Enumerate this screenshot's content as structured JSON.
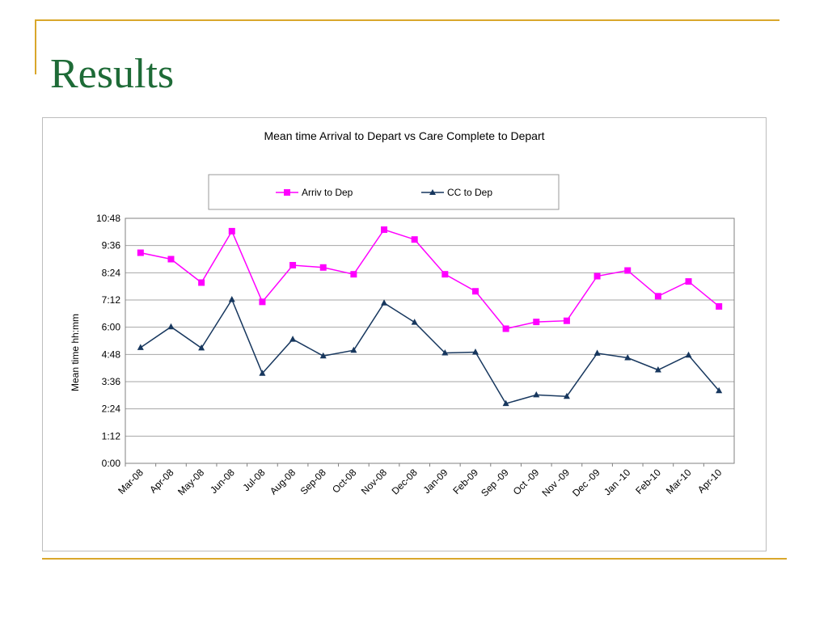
{
  "slide": {
    "title": "Results"
  },
  "colors": {
    "accent": "#d9a72b",
    "title": "#1e6b37"
  },
  "chart_data": {
    "type": "line",
    "title": "Mean time Arrival to Depart vs Care Complete to Depart",
    "xlabel": "",
    "ylabel": "Mean time  hh:mm",
    "categories": [
      "Mar-08",
      "Apr-08",
      "May-08",
      "Jun-08",
      "Jul-08",
      "Aug-08",
      "Sep-08",
      "Oct-08",
      "Nov-08",
      "Dec-08",
      "Jan-09",
      "Feb-09",
      "Sep -09",
      "Oct -09",
      "Nov -09",
      "Dec -09",
      "Jan -10",
      "Feb-10",
      "Mar-10",
      "Apr-10"
    ],
    "y_unit": "minutes",
    "ylim": [
      0,
      648
    ],
    "y_ticks": [
      0,
      72,
      144,
      216,
      288,
      360,
      432,
      504,
      576,
      648
    ],
    "y_tick_labels": [
      "0:00",
      "1:12",
      "2:24",
      "3:36",
      "4:48",
      "6:00",
      "7:12",
      "8:24",
      "9:36",
      "10:48"
    ],
    "grid": true,
    "legend_position": "top",
    "series": [
      {
        "name": "Arriv to Dep",
        "color": "#ff00ff",
        "marker": "square",
        "values": [
          557,
          540,
          478,
          614,
          427,
          524,
          518,
          500,
          618,
          592,
          500,
          455,
          356,
          374,
          377,
          495,
          510,
          442,
          481,
          415
        ]
      },
      {
        "name": "CC to Dep",
        "color": "#17375e",
        "marker": "triangle",
        "values": [
          306,
          361,
          305,
          433,
          238,
          328,
          284,
          299,
          424,
          373,
          292,
          294,
          158,
          181,
          177,
          291,
          279,
          247,
          286,
          192
        ]
      }
    ]
  }
}
